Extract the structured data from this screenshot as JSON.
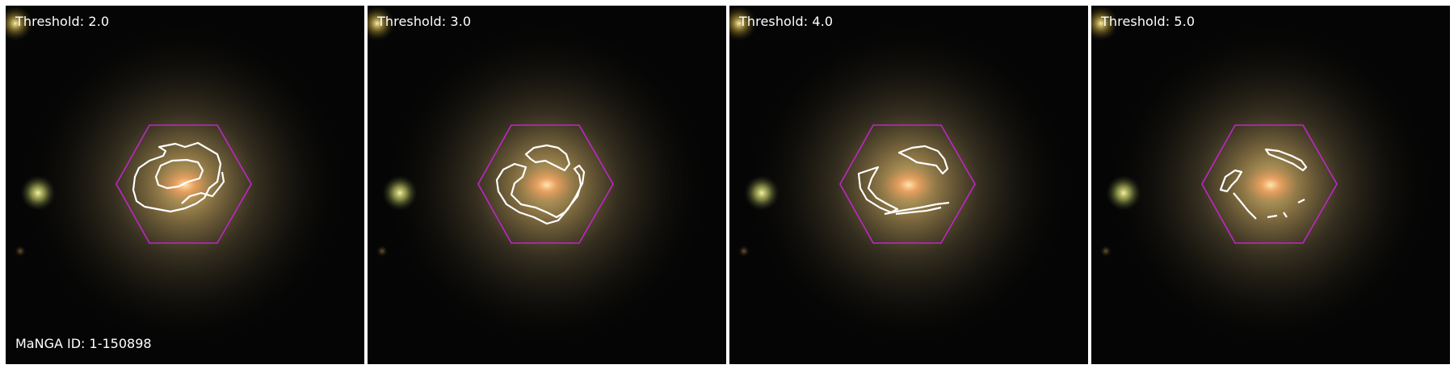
{
  "figure": {
    "panels": [
      {
        "threshold_label": "Threshold: 2.0"
      },
      {
        "threshold_label": "Threshold: 3.0"
      },
      {
        "threshold_label": "Threshold: 4.0"
      },
      {
        "threshold_label": "Threshold: 5.0"
      }
    ],
    "galaxy_id_label": "MaNGA ID: 1-150898",
    "colors": {
      "background": "#050505",
      "hexagon": "#c026c8",
      "contour": "#ffffff",
      "divider": "#ffffff"
    }
  }
}
